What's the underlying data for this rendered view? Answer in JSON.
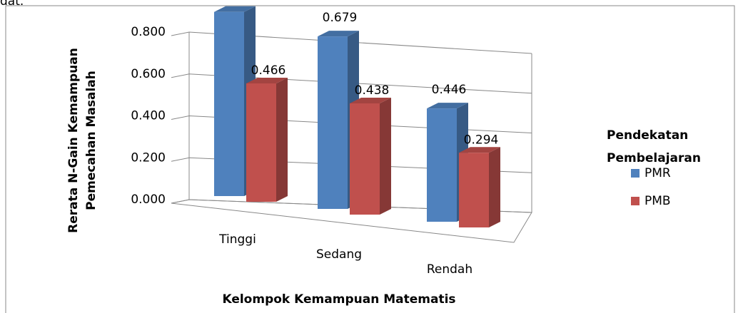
{
  "caption_fragment": "dat.",
  "chart_data": {
    "type": "bar3d",
    "ylabel": [
      "Rerata N-Gain Kemampuan",
      "Pemecahan Masalah"
    ],
    "xlabel": "Kelompok Kemampuan Matematis",
    "legend_title": "Pendekatan Pembelajaran",
    "categories": [
      "Tinggi",
      "Sedang",
      "Rendah"
    ],
    "series": [
      {
        "name": "PMR",
        "color": "#4f81bd",
        "values": [
          0.725,
          0.679,
          0.446
        ]
      },
      {
        "name": "PMB",
        "color": "#c0504d",
        "values": [
          0.466,
          0.438,
          0.294
        ]
      }
    ],
    "ylim": [
      0,
      0.8
    ],
    "yticks": [
      {
        "value": 0,
        "label": "0.000"
      },
      {
        "value": 0.2,
        "label": "0.200"
      },
      {
        "value": 0.4,
        "label": "0.400"
      },
      {
        "value": 0.6,
        "label": "0.600"
      },
      {
        "value": 0.8,
        "label": "0.800"
      }
    ],
    "grid": true,
    "legend": "right"
  }
}
